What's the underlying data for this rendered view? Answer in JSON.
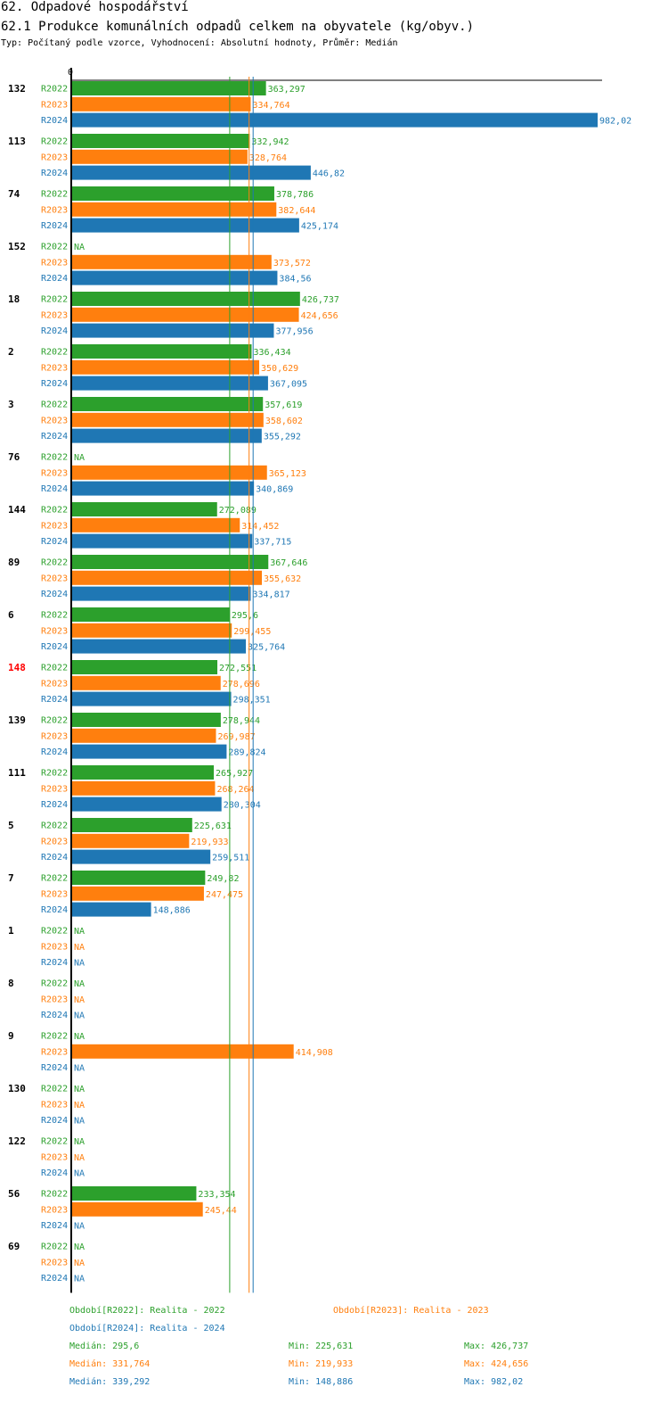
{
  "header": {
    "title": "62. Odpadové hospodářství",
    "subtitle": "62.1 Produkce komunálních odpadů celkem na obyvatele (kg/obyv.)",
    "meta": "Typ: Počítaný podle vzorce, Vyhodnocení: Absolutní hodnoty, Průměr: Medián"
  },
  "colors": {
    "R2022": "#2ca02c",
    "R2023": "#ff7f0e",
    "R2024": "#1f77b4",
    "highlight": "#ff0000"
  },
  "chart_data": {
    "type": "bar",
    "orientation": "horizontal",
    "x_axis_label": "0",
    "series_names": [
      "R2022",
      "R2023",
      "R2024"
    ],
    "na_label": "NA",
    "highlight_group": "148",
    "groups": [
      {
        "label": "132",
        "values": [
          363.297,
          334.764,
          982.02
        ],
        "labels": [
          "363,297",
          "334,764",
          "982,02"
        ]
      },
      {
        "label": "113",
        "values": [
          332.942,
          328.764,
          446.82
        ],
        "labels": [
          "332,942",
          "328,764",
          "446,82"
        ]
      },
      {
        "label": "74",
        "values": [
          378.786,
          382.644,
          425.174
        ],
        "labels": [
          "378,786",
          "382,644",
          "425,174"
        ]
      },
      {
        "label": "152",
        "values": [
          null,
          373.572,
          384.56
        ],
        "labels": [
          "NA",
          "373,572",
          "384,56"
        ]
      },
      {
        "label": "18",
        "values": [
          426.737,
          424.656,
          377.956
        ],
        "labels": [
          "426,737",
          "424,656",
          "377,956"
        ]
      },
      {
        "label": "2",
        "values": [
          336.434,
          350.629,
          367.095
        ],
        "labels": [
          "336,434",
          "350,629",
          "367,095"
        ]
      },
      {
        "label": "3",
        "values": [
          357.619,
          358.602,
          355.292
        ],
        "labels": [
          "357,619",
          "358,602",
          "355,292"
        ]
      },
      {
        "label": "76",
        "values": [
          null,
          365.123,
          340.869
        ],
        "labels": [
          "NA",
          "365,123",
          "340,869"
        ]
      },
      {
        "label": "144",
        "values": [
          272.089,
          314.452,
          337.715
        ],
        "labels": [
          "272,089",
          "314,452",
          "337,715"
        ]
      },
      {
        "label": "89",
        "values": [
          367.646,
          355.632,
          334.817
        ],
        "labels": [
          "367,646",
          "355,632",
          "334,817"
        ]
      },
      {
        "label": "6",
        "values": [
          295.6,
          299.455,
          325.764
        ],
        "labels": [
          "295,6",
          "299,455",
          "325,764"
        ]
      },
      {
        "label": "148",
        "values": [
          272.551,
          278.696,
          298.351
        ],
        "labels": [
          "272,551",
          "278,696",
          "298,351"
        ]
      },
      {
        "label": "139",
        "values": [
          278.944,
          269.987,
          289.824
        ],
        "labels": [
          "278,944",
          "269,987",
          "289,824"
        ]
      },
      {
        "label": "111",
        "values": [
          265.927,
          268.264,
          280.304
        ],
        "labels": [
          "265,927",
          "268,264",
          "280,304"
        ]
      },
      {
        "label": "5",
        "values": [
          225.631,
          219.933,
          259.511
        ],
        "labels": [
          "225,631",
          "219,933",
          "259,511"
        ]
      },
      {
        "label": "7",
        "values": [
          249.82,
          247.475,
          148.886
        ],
        "labels": [
          "249,82",
          "247,475",
          "148,886"
        ]
      },
      {
        "label": "1",
        "values": [
          null,
          null,
          null
        ],
        "labels": [
          "NA",
          "NA",
          "NA"
        ]
      },
      {
        "label": "8",
        "values": [
          null,
          null,
          null
        ],
        "labels": [
          "NA",
          "NA",
          "NA"
        ]
      },
      {
        "label": "9",
        "values": [
          null,
          414.908,
          null
        ],
        "labels": [
          "NA",
          "414,908",
          "NA"
        ]
      },
      {
        "label": "130",
        "values": [
          null,
          null,
          null
        ],
        "labels": [
          "NA",
          "NA",
          "NA"
        ]
      },
      {
        "label": "122",
        "values": [
          null,
          null,
          null
        ],
        "labels": [
          "NA",
          "NA",
          "NA"
        ]
      },
      {
        "label": "56",
        "values": [
          233.354,
          245.44,
          null
        ],
        "labels": [
          "233,354",
          "245,44",
          "NA"
        ]
      },
      {
        "label": "69",
        "values": [
          null,
          null,
          null
        ],
        "labels": [
          "NA",
          "NA",
          "NA"
        ]
      }
    ],
    "medians": [
      295.6,
      331.764,
      339.292
    ],
    "xlim": [
      0,
      982.02
    ]
  },
  "legend": {
    "r2022": "Období[R2022]: Realita - 2022",
    "r2023": "Období[R2023]: Realita - 2023",
    "r2024": "Období[R2024]: Realita - 2024"
  },
  "stats": {
    "r2022": {
      "median": "Medián: 295,6",
      "min": "Min: 225,631",
      "max": "Max: 426,737"
    },
    "r2023": {
      "median": "Medián: 331,764",
      "min": "Min: 219,933",
      "max": "Max: 424,656"
    },
    "r2024": {
      "median": "Medián: 339,292",
      "min": "Min: 148,886",
      "max": "Max: 982,02"
    }
  }
}
